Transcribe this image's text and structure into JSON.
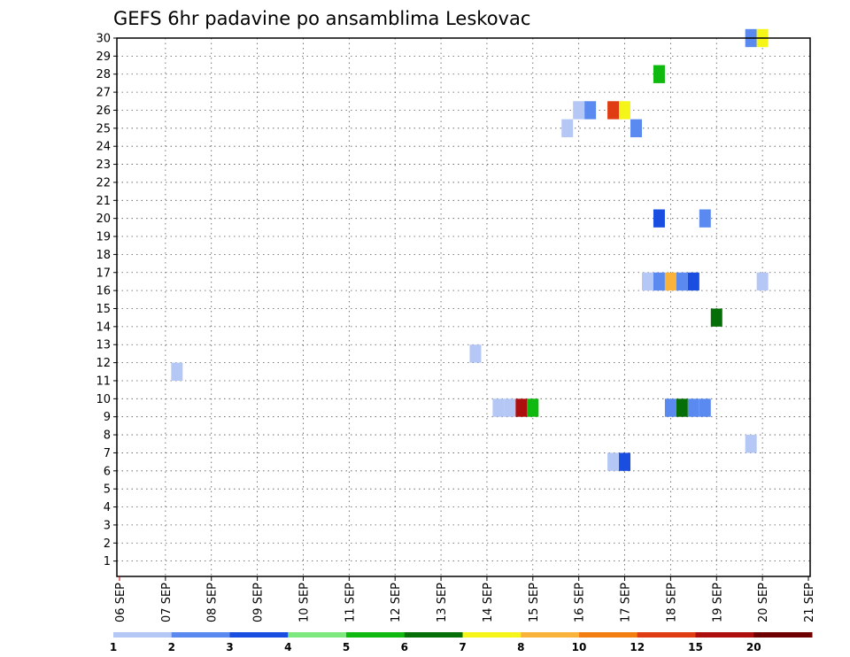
{
  "chart_data": {
    "type": "heatmap",
    "title": "GEFS 6hr padavine po ansamblima Leskovac",
    "x_tick_labels": [
      "06 SEP",
      "07 SEP",
      "08 SEP",
      "09 SEP",
      "10 SEP",
      "11 SEP",
      "12 SEP",
      "13 SEP",
      "14 SEP",
      "15 SEP",
      "16 SEP",
      "17 SEP",
      "18 SEP",
      "19 SEP",
      "20 SEP",
      "21 SEP"
    ],
    "y_tick_labels": [
      "1",
      "2",
      "3",
      "4",
      "5",
      "6",
      "7",
      "8",
      "9",
      "10",
      "11",
      "12",
      "13",
      "14",
      "15",
      "16",
      "17",
      "18",
      "19",
      "20",
      "21",
      "22",
      "23",
      "24",
      "25",
      "26",
      "27",
      "28",
      "29",
      "30"
    ],
    "xlim_days": [
      6,
      21
    ],
    "ylim": [
      0,
      30
    ],
    "grid": true,
    "legend": {
      "placement": "bottom",
      "labels": [
        "1",
        "2",
        "3",
        "4",
        "5",
        "6",
        "7",
        "8",
        "10",
        "12",
        "15",
        "20"
      ],
      "colors": [
        "#b4c7f5",
        "#5a8af0",
        "#1a4ee0",
        "#7de87d",
        "#10b910",
        "#066e06",
        "#f5f51a",
        "#f9b23a",
        "#f27d10",
        "#e03c14",
        "#ad0f0f",
        "#6e0000"
      ]
    },
    "cells": [
      {
        "day": 7.25,
        "member": 11.5,
        "c": "#b4c7f5"
      },
      {
        "day": 13.75,
        "member": 12.5,
        "c": "#b4c7f5"
      },
      {
        "day": 14.25,
        "member": 9.5,
        "c": "#b4c7f5"
      },
      {
        "day": 14.5,
        "member": 9.5,
        "c": "#b4c7f5"
      },
      {
        "day": 14.75,
        "member": 9.5,
        "c": "#ad0f0f"
      },
      {
        "day": 15.0,
        "member": 9.5,
        "c": "#10b910"
      },
      {
        "day": 15.75,
        "member": 25,
        "c": "#b4c7f5"
      },
      {
        "day": 16.0,
        "member": 26,
        "c": "#b4c7f5"
      },
      {
        "day": 16.25,
        "member": 26,
        "c": "#5a8af0"
      },
      {
        "day": 16.75,
        "member": 26,
        "c": "#e03c14"
      },
      {
        "day": 17.0,
        "member": 26,
        "c": "#f5f51a"
      },
      {
        "day": 17.25,
        "member": 25,
        "c": "#5a8af0"
      },
      {
        "day": 16.75,
        "member": 6.5,
        "c": "#b4c7f5"
      },
      {
        "day": 17.0,
        "member": 6.5,
        "c": "#1a4ee0"
      },
      {
        "day": 17.75,
        "member": 28,
        "c": "#10b910"
      },
      {
        "day": 17.75,
        "member": 20,
        "c": "#1a4ee0"
      },
      {
        "day": 17.5,
        "member": 16.5,
        "c": "#b4c7f5"
      },
      {
        "day": 17.75,
        "member": 16.5,
        "c": "#5a8af0"
      },
      {
        "day": 18.0,
        "member": 16.5,
        "c": "#f9b23a"
      },
      {
        "day": 18.25,
        "member": 16.5,
        "c": "#5a8af0"
      },
      {
        "day": 18.5,
        "member": 16.5,
        "c": "#1a4ee0"
      },
      {
        "day": 18.0,
        "member": 9.5,
        "c": "#5a8af0"
      },
      {
        "day": 18.25,
        "member": 9.5,
        "c": "#066e06"
      },
      {
        "day": 18.5,
        "member": 9.5,
        "c": "#5a8af0"
      },
      {
        "day": 18.75,
        "member": 9.5,
        "c": "#5a8af0"
      },
      {
        "day": 18.75,
        "member": 20,
        "c": "#5a8af0"
      },
      {
        "day": 19.0,
        "member": 14.5,
        "c": "#066e06"
      },
      {
        "day": 19.75,
        "member": 30,
        "c": "#5a8af0"
      },
      {
        "day": 20.0,
        "member": 30,
        "c": "#f5f51a"
      },
      {
        "day": 20.0,
        "member": 16.5,
        "c": "#b4c7f5"
      },
      {
        "day": 19.75,
        "member": 7.5,
        "c": "#b4c7f5"
      }
    ]
  }
}
